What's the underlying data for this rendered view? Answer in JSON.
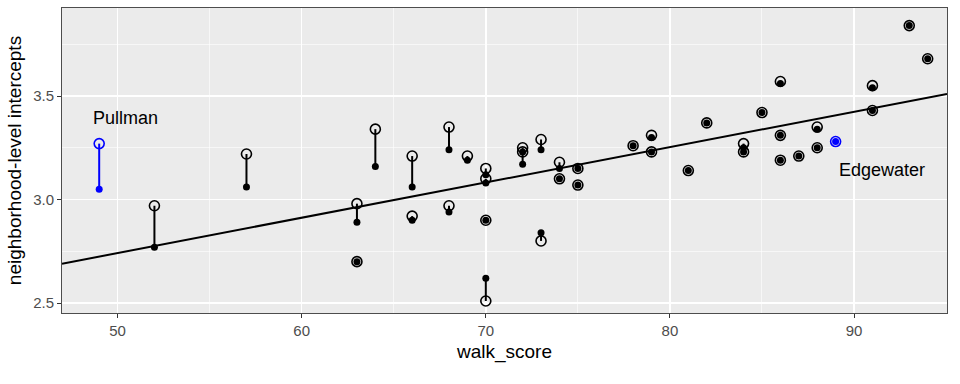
{
  "chart_data": {
    "type": "scatter",
    "xlabel": "walk_score",
    "ylabel": "neighborhood-level intercepts",
    "x": [
      49,
      52,
      57,
      63,
      63,
      64,
      66,
      66,
      68,
      68,
      69,
      70,
      70,
      70,
      70,
      72,
      72,
      73,
      73,
      74,
      74,
      75,
      75,
      78,
      79,
      79,
      81,
      82,
      84,
      84,
      85,
      86,
      86,
      86,
      87,
      88,
      88,
      89,
      91,
      91,
      93,
      94
    ],
    "series": [
      {
        "type": "scatter",
        "marker": "open circle",
        "values": [
          3.27,
          2.97,
          3.22,
          2.98,
          2.7,
          3.34,
          3.21,
          2.92,
          3.35,
          2.97,
          3.21,
          3.15,
          3.1,
          2.9,
          2.51,
          3.25,
          3.23,
          3.29,
          2.8,
          3.18,
          3.1,
          3.15,
          3.07,
          3.26,
          3.31,
          3.23,
          3.14,
          3.37,
          3.27,
          3.23,
          3.42,
          3.57,
          3.31,
          3.19,
          3.21,
          3.35,
          3.25,
          3.28,
          3.55,
          3.43,
          3.84,
          3.68
        ],
        "colors": [
          "#0000FF",
          "#000000",
          "#000000",
          "#000000",
          "#000000",
          "#000000",
          "#000000",
          "#000000",
          "#000000",
          "#000000",
          "#000000",
          "#000000",
          "#000000",
          "#000000",
          "#000000",
          "#000000",
          "#000000",
          "#000000",
          "#000000",
          "#000000",
          "#000000",
          "#000000",
          "#000000",
          "#000000",
          "#000000",
          "#000000",
          "#000000",
          "#000000",
          "#000000",
          "#000000",
          "#000000",
          "#000000",
          "#000000",
          "#000000",
          "#000000",
          "#000000",
          "#000000",
          "#0000FF",
          "#000000",
          "#000000",
          "#000000",
          "#000000"
        ]
      },
      {
        "type": "scatter",
        "marker": "filled circle",
        "values": [
          3.05,
          2.77,
          3.06,
          2.89,
          2.7,
          3.16,
          3.06,
          2.9,
          3.24,
          2.94,
          3.19,
          3.12,
          3.08,
          2.9,
          2.62,
          3.17,
          3.23,
          3.24,
          2.84,
          3.15,
          3.1,
          3.15,
          3.07,
          3.26,
          3.3,
          3.23,
          3.14,
          3.37,
          3.25,
          3.23,
          3.42,
          3.56,
          3.31,
          3.19,
          3.21,
          3.34,
          3.25,
          3.28,
          3.54,
          3.43,
          3.84,
          3.68
        ],
        "colors": [
          "#0000FF",
          "#000000",
          "#000000",
          "#000000",
          "#000000",
          "#000000",
          "#000000",
          "#000000",
          "#000000",
          "#000000",
          "#000000",
          "#000000",
          "#000000",
          "#000000",
          "#000000",
          "#000000",
          "#000000",
          "#000000",
          "#000000",
          "#000000",
          "#000000",
          "#000000",
          "#000000",
          "#000000",
          "#000000",
          "#000000",
          "#000000",
          "#000000",
          "#000000",
          "#000000",
          "#000000",
          "#000000",
          "#000000",
          "#000000",
          "#000000",
          "#000000",
          "#000000",
          "#0000FF",
          "#000000",
          "#000000",
          "#000000",
          "#000000"
        ]
      },
      {
        "type": "line",
        "line_style": "solid",
        "color": "#000000",
        "x": [
          46.98,
          95.05
        ],
        "values": [
          2.69,
          3.51
        ]
      }
    ],
    "annotations": [
      {
        "text": "Pullman",
        "x": 50.43,
        "y": 3.394
      },
      {
        "text": "Edgewater",
        "x": 91.5,
        "y": 3.145
      }
    ],
    "xlim": [
      46.98,
      95.05
    ],
    "ylim": [
      2.452,
      3.925
    ],
    "xticks": [
      50,
      60,
      70,
      80,
      90
    ],
    "yticks": [
      {
        "value": 2.5,
        "label": "2.5"
      },
      {
        "value": 3.0,
        "label": "3.0"
      },
      {
        "value": 3.5,
        "label": "3.5"
      }
    ],
    "grid": true
  }
}
